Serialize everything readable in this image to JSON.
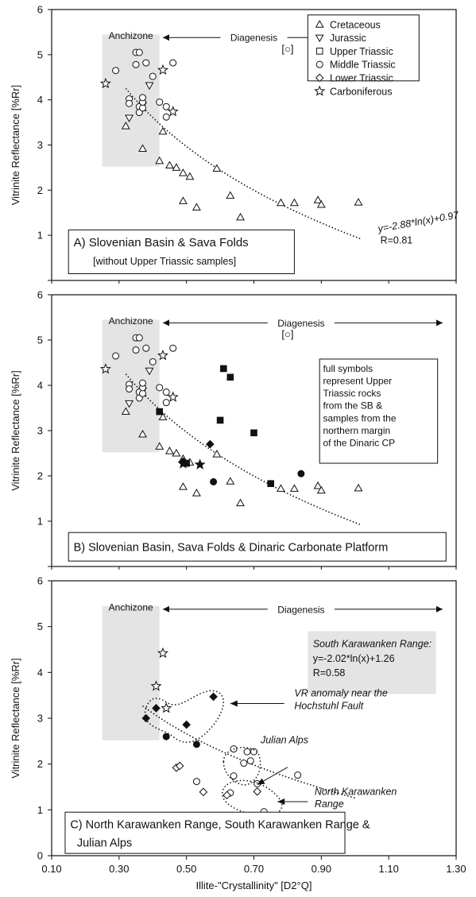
{
  "figure": {
    "ylabel": "Vitrinite Reflectance [%Rr]",
    "xlabel": "Illite-\"Crystallinity\"  [D2°Q]",
    "x_ticks": [
      "0.10",
      "0.30",
      "0.50",
      "0.70",
      "0.90",
      "1.10",
      "1.30"
    ],
    "y_ticks": [
      "0",
      "1",
      "2",
      "3",
      "4",
      "5",
      "6"
    ],
    "shade_color": "#e4e4e4"
  },
  "chart_data": [
    {
      "type": "scatter",
      "panel": "A",
      "title": "A) Slovenian Basin & Sava Folds",
      "subtitle": "[without Upper Triassic samples]",
      "xlim": [
        0.1,
        1.3
      ],
      "ylim": [
        0,
        6
      ],
      "zone_label": "Anchizone",
      "range_label": "Diagenesis",
      "bracket_label": "[○]",
      "equation": "y=-2.88*ln(x)+0.97",
      "r_value": "R=0.81",
      "fit": {
        "a": -2.88,
        "b": 0.97,
        "x_from": 0.32,
        "x_to": 1.02
      },
      "legend": [
        {
          "marker": "triangle-up",
          "name": "Cretaceous"
        },
        {
          "marker": "triangle-down",
          "name": "Jurassic"
        },
        {
          "marker": "square",
          "name": "Upper Triassic"
        },
        {
          "marker": "circle",
          "name": "Middle Triassic"
        },
        {
          "marker": "diamond",
          "name": "Lower Triassic"
        },
        {
          "marker": "star",
          "name": "Carboniferous"
        }
      ],
      "series": [
        {
          "marker": "triangle-up",
          "filled": false,
          "points": [
            [
              0.32,
              3.42
            ],
            [
              0.37,
              2.92
            ],
            [
              0.42,
              2.65
            ],
            [
              0.43,
              3.3
            ],
            [
              0.45,
              2.55
            ],
            [
              0.47,
              2.5
            ],
            [
              0.49,
              2.38
            ],
            [
              0.51,
              2.3
            ],
            [
              0.49,
              1.76
            ],
            [
              0.53,
              1.62
            ],
            [
              0.59,
              2.48
            ],
            [
              0.63,
              1.88
            ],
            [
              0.66,
              1.4
            ],
            [
              0.78,
              1.72
            ],
            [
              0.82,
              1.72
            ],
            [
              0.89,
              1.78
            ],
            [
              0.9,
              1.68
            ],
            [
              1.01,
              1.73
            ]
          ]
        },
        {
          "marker": "triangle-down",
          "filled": false,
          "points": [
            [
              0.33,
              3.6
            ],
            [
              0.39,
              4.32
            ],
            [
              0.37,
              3.88
            ]
          ]
        },
        {
          "marker": "circle",
          "filled": false,
          "points": [
            [
              0.29,
              4.65
            ],
            [
              0.33,
              4.02
            ],
            [
              0.33,
              3.92
            ],
            [
              0.35,
              4.78
            ],
            [
              0.35,
              5.05
            ],
            [
              0.36,
              5.05
            ],
            [
              0.38,
              4.82
            ],
            [
              0.36,
              3.85
            ],
            [
              0.36,
              3.72
            ],
            [
              0.37,
              3.82
            ],
            [
              0.37,
              3.95
            ],
            [
              0.37,
              4.05
            ],
            [
              0.4,
              4.52
            ],
            [
              0.42,
              3.95
            ],
            [
              0.44,
              3.85
            ],
            [
              0.44,
              3.62
            ],
            [
              0.46,
              4.82
            ]
          ]
        },
        {
          "marker": "star",
          "filled": false,
          "points": [
            [
              0.26,
              4.36
            ],
            [
              0.43,
              4.66
            ],
            [
              0.46,
              3.74
            ]
          ]
        }
      ]
    },
    {
      "type": "scatter",
      "panel": "B",
      "title": "B) Slovenian Basin, Sava Folds & Dinaric Carbonate Platform",
      "xlim": [
        0.1,
        1.3
      ],
      "ylim": [
        0,
        6
      ],
      "zone_label": "Anchizone",
      "range_label": "Diagenesis",
      "bracket_label": "[○]",
      "note_lines": [
        "full symbols",
        "represent Upper",
        "Triassic rocks",
        "from the SB &",
        "samples from the",
        "northern margin",
        "of the Dinaric CP"
      ],
      "fit": {
        "a": -2.88,
        "b": 0.97,
        "x_from": 0.32,
        "x_to": 1.02
      },
      "series": [
        {
          "marker": "triangle-up",
          "filled": false,
          "points": [
            [
              0.32,
              3.42
            ],
            [
              0.37,
              2.92
            ],
            [
              0.42,
              2.65
            ],
            [
              0.43,
              3.3
            ],
            [
              0.45,
              2.55
            ],
            [
              0.47,
              2.5
            ],
            [
              0.49,
              2.38
            ],
            [
              0.51,
              2.3
            ],
            [
              0.49,
              1.76
            ],
            [
              0.53,
              1.62
            ],
            [
              0.59,
              2.48
            ],
            [
              0.63,
              1.88
            ],
            [
              0.66,
              1.4
            ],
            [
              0.78,
              1.72
            ],
            [
              0.82,
              1.72
            ],
            [
              0.89,
              1.78
            ],
            [
              0.9,
              1.68
            ],
            [
              1.01,
              1.73
            ]
          ]
        },
        {
          "marker": "triangle-down",
          "filled": false,
          "points": [
            [
              0.33,
              3.6
            ],
            [
              0.39,
              4.32
            ],
            [
              0.37,
              3.88
            ]
          ]
        },
        {
          "marker": "circle",
          "filled": false,
          "points": [
            [
              0.29,
              4.65
            ],
            [
              0.33,
              4.02
            ],
            [
              0.33,
              3.92
            ],
            [
              0.35,
              4.78
            ],
            [
              0.35,
              5.05
            ],
            [
              0.36,
              5.05
            ],
            [
              0.38,
              4.82
            ],
            [
              0.36,
              3.85
            ],
            [
              0.36,
              3.72
            ],
            [
              0.37,
              3.82
            ],
            [
              0.37,
              3.95
            ],
            [
              0.37,
              4.05
            ],
            [
              0.4,
              4.52
            ],
            [
              0.42,
              3.95
            ],
            [
              0.44,
              3.85
            ],
            [
              0.44,
              3.62
            ],
            [
              0.46,
              4.82
            ]
          ]
        },
        {
          "marker": "star",
          "filled": false,
          "points": [
            [
              0.26,
              4.36
            ],
            [
              0.43,
              4.66
            ],
            [
              0.46,
              3.74
            ]
          ]
        },
        {
          "marker": "square",
          "filled": true,
          "points": [
            [
              0.42,
              3.42
            ],
            [
              0.61,
              4.37
            ],
            [
              0.63,
              4.18
            ],
            [
              0.6,
              3.23
            ],
            [
              0.7,
              2.95
            ],
            [
              0.75,
              1.83
            ],
            [
              0.5,
              2.28
            ]
          ]
        },
        {
          "marker": "diamond",
          "filled": true,
          "points": [
            [
              0.57,
              2.7
            ],
            [
              0.49,
              2.32
            ]
          ]
        },
        {
          "marker": "circle",
          "filled": true,
          "points": [
            [
              0.58,
              1.87
            ],
            [
              0.84,
              2.05
            ]
          ]
        },
        {
          "marker": "star",
          "filled": true,
          "points": [
            [
              0.49,
              2.27
            ],
            [
              0.54,
              2.25
            ]
          ]
        }
      ]
    },
    {
      "type": "scatter",
      "panel": "C",
      "title_lines": [
        "C) North Karawanken Range, South Karawanken Range &",
        "Julian Alps"
      ],
      "xlim": [
        0.1,
        1.3
      ],
      "ylim": [
        0,
        6
      ],
      "zone_label": "Anchizone",
      "range_label": "Diagenesis",
      "box_title": "South Karawanken Range:",
      "box_equation": "y=-2.02*ln(x)+1.26",
      "box_r": "R=0.58",
      "annotations": {
        "vr_line1": "VR anomaly near the",
        "vr_line2": "Hochstuhl Fault",
        "julian": "Julian Alps",
        "nk_line1": "North Karawanken",
        "nk_line2": "Range"
      },
      "fit": {
        "a": -2.02,
        "b": 1.26,
        "x_from": 0.37,
        "x_to": 1.0
      },
      "series": [
        {
          "marker": "star",
          "filled": false,
          "points": [
            [
              0.43,
              4.42
            ],
            [
              0.41,
              3.7
            ],
            [
              0.44,
              3.22
            ]
          ]
        },
        {
          "marker": "diamond",
          "filled": true,
          "points": [
            [
              0.38,
              3.0
            ],
            [
              0.41,
              3.22
            ],
            [
              0.5,
              2.86
            ],
            [
              0.58,
              3.47
            ]
          ]
        },
        {
          "marker": "circle",
          "filled": true,
          "points": [
            [
              0.44,
              2.6
            ],
            [
              0.53,
              2.43
            ]
          ]
        },
        {
          "marker": "circle",
          "filled": false,
          "points": [
            [
              0.64,
              2.33
            ],
            [
              0.67,
              2.02
            ],
            [
              0.68,
              2.27
            ],
            [
              0.7,
              2.27
            ],
            [
              0.69,
              2.07
            ],
            [
              0.64,
              1.74
            ],
            [
              0.71,
              1.57
            ],
            [
              0.53,
              1.62
            ],
            [
              0.63,
              1.37
            ],
            [
              0.73,
              0.96
            ],
            [
              0.83,
              1.76
            ]
          ]
        },
        {
          "marker": "diamond",
          "filled": false,
          "points": [
            [
              0.47,
              1.92
            ],
            [
              0.48,
              1.96
            ],
            [
              0.55,
              1.39
            ],
            [
              0.62,
              1.32
            ],
            [
              0.71,
              1.4
            ]
          ]
        }
      ]
    }
  ]
}
